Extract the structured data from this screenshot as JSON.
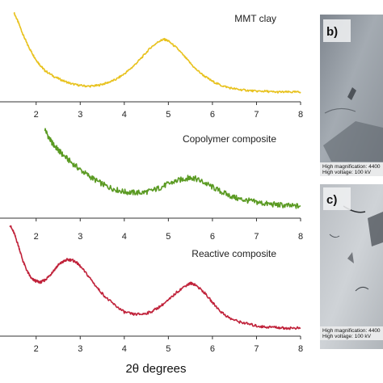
{
  "chart_data": [
    {
      "type": "line",
      "title": "MMT clay",
      "xlim": [
        1.4,
        8
      ],
      "xticks": [
        2,
        3,
        4,
        5,
        6,
        7,
        8
      ],
      "color": "#e8c21e",
      "x": [
        1.5,
        1.6,
        1.7,
        1.8,
        1.9,
        2.0,
        2.1,
        2.2,
        2.4,
        2.6,
        2.8,
        3.0,
        3.2,
        3.4,
        3.6,
        3.8,
        4.0,
        4.2,
        4.4,
        4.6,
        4.8,
        4.9,
        5.0,
        5.2,
        5.4,
        5.6,
        5.8,
        6.0,
        6.2,
        6.4,
        6.6,
        6.8,
        7.0,
        7.2,
        7.4,
        7.6,
        7.8,
        8.0
      ],
      "y": [
        1.0,
        0.88,
        0.74,
        0.62,
        0.52,
        0.43,
        0.36,
        0.3,
        0.23,
        0.18,
        0.14,
        0.12,
        0.11,
        0.12,
        0.15,
        0.19,
        0.26,
        0.35,
        0.46,
        0.58,
        0.66,
        0.68,
        0.66,
        0.57,
        0.45,
        0.33,
        0.24,
        0.17,
        0.12,
        0.09,
        0.07,
        0.06,
        0.05,
        0.05,
        0.04,
        0.04,
        0.04,
        0.04
      ]
    },
    {
      "type": "line",
      "title": "Copolymer composite",
      "xlim": [
        1.4,
        8
      ],
      "xticks": [
        2,
        3,
        4,
        5,
        6,
        7,
        8
      ],
      "color": "#5a9a22",
      "x": [
        2.2,
        2.3,
        2.4,
        2.5,
        2.6,
        2.8,
        3.0,
        3.2,
        3.4,
        3.6,
        3.8,
        4.0,
        4.2,
        4.4,
        4.6,
        4.8,
        5.0,
        5.2,
        5.4,
        5.5,
        5.6,
        5.8,
        6.0,
        6.2,
        6.4,
        6.6,
        6.8,
        7.0,
        7.2,
        7.4,
        7.6,
        7.8,
        8.0
      ],
      "y": [
        1.0,
        0.88,
        0.8,
        0.74,
        0.68,
        0.58,
        0.49,
        0.41,
        0.34,
        0.28,
        0.24,
        0.21,
        0.2,
        0.2,
        0.22,
        0.26,
        0.31,
        0.35,
        0.38,
        0.39,
        0.38,
        0.33,
        0.27,
        0.21,
        0.16,
        0.12,
        0.1,
        0.08,
        0.06,
        0.05,
        0.04,
        0.03,
        0.03
      ]
    },
    {
      "type": "line",
      "title": "Reactive composite",
      "xlim": [
        1.4,
        8
      ],
      "xticks": [
        2,
        3,
        4,
        5,
        6,
        7,
        8
      ],
      "color": "#c0223a",
      "x": [
        1.4,
        1.5,
        1.6,
        1.7,
        1.8,
        1.9,
        2.0,
        2.1,
        2.2,
        2.3,
        2.4,
        2.5,
        2.6,
        2.7,
        2.8,
        2.9,
        3.0,
        3.2,
        3.4,
        3.6,
        3.8,
        4.0,
        4.2,
        4.4,
        4.6,
        4.8,
        5.0,
        5.2,
        5.4,
        5.5,
        5.6,
        5.8,
        6.0,
        6.2,
        6.4,
        6.6,
        6.8,
        7.0,
        7.2,
        7.4,
        7.6,
        7.8,
        8.0
      ],
      "y": [
        1.0,
        0.92,
        0.8,
        0.66,
        0.56,
        0.49,
        0.47,
        0.46,
        0.48,
        0.52,
        0.57,
        0.62,
        0.65,
        0.67,
        0.67,
        0.65,
        0.61,
        0.51,
        0.4,
        0.31,
        0.24,
        0.18,
        0.16,
        0.16,
        0.18,
        0.23,
        0.29,
        0.37,
        0.43,
        0.45,
        0.44,
        0.37,
        0.27,
        0.18,
        0.12,
        0.09,
        0.07,
        0.05,
        0.04,
        0.04,
        0.03,
        0.03,
        0.03
      ]
    }
  ],
  "xlabel": "2θ degrees",
  "tem_panels": [
    {
      "letter": "b)",
      "caption_line1": "High magnification: 4400",
      "caption_line2": "High voltage: 100 kV"
    },
    {
      "letter": "c)",
      "caption_line1": "High magnification: 4400",
      "caption_line2": "High voltage: 100 kV"
    }
  ]
}
